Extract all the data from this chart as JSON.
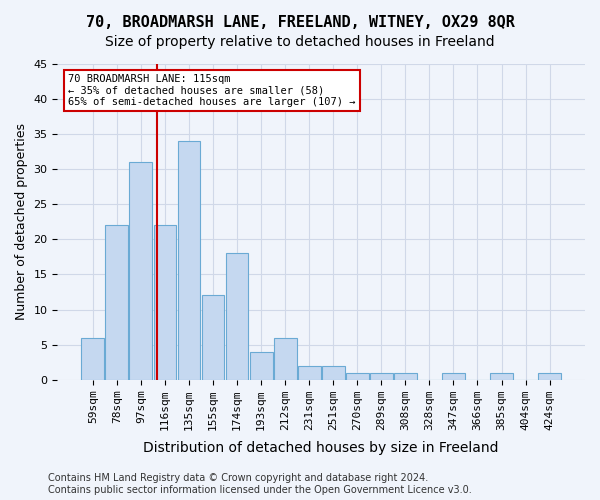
{
  "title1": "70, BROADMARSH LANE, FREELAND, WITNEY, OX29 8QR",
  "title2": "Size of property relative to detached houses in Freeland",
  "xlabel": "Distribution of detached houses by size in Freeland",
  "ylabel": "Number of detached properties",
  "bar_values": [
    6,
    22,
    31,
    22,
    34,
    12,
    18,
    4,
    6,
    2,
    2,
    1,
    1,
    1,
    0,
    1,
    0,
    1,
    0,
    1
  ],
  "bar_labels": [
    "59sqm",
    "78sqm",
    "97sqm",
    "116sqm",
    "135sqm",
    "155sqm",
    "174sqm",
    "193sqm",
    "212sqm",
    "231sqm",
    "251sqm",
    "270sqm",
    "289sqm",
    "308sqm",
    "328sqm",
    "347sqm",
    "366sqm",
    "385sqm",
    "404sqm",
    "424sqm"
  ],
  "bar_color": "#c5d8f0",
  "bar_edge_color": "#6aaad4",
  "grid_color": "#d0d8e8",
  "bg_color": "#f0f4fb",
  "red_line_x": 2.65,
  "annotation_box_text": "70 BROADMARSH LANE: 115sqm\n← 35% of detached houses are smaller (58)\n65% of semi-detached houses are larger (107) →",
  "annotation_box_color": "#ffffff",
  "annotation_box_edge_color": "#cc0000",
  "annotation_text_color": "#000000",
  "red_line_color": "#cc0000",
  "footer_text": "Contains HM Land Registry data © Crown copyright and database right 2024.\nContains public sector information licensed under the Open Government Licence v3.0.",
  "ylim": [
    0,
    45
  ],
  "yticks": [
    0,
    5,
    10,
    15,
    20,
    25,
    30,
    35,
    40,
    45
  ],
  "title1_fontsize": 11,
  "title2_fontsize": 10,
  "xlabel_fontsize": 10,
  "ylabel_fontsize": 9,
  "tick_fontsize": 8,
  "footer_fontsize": 7
}
